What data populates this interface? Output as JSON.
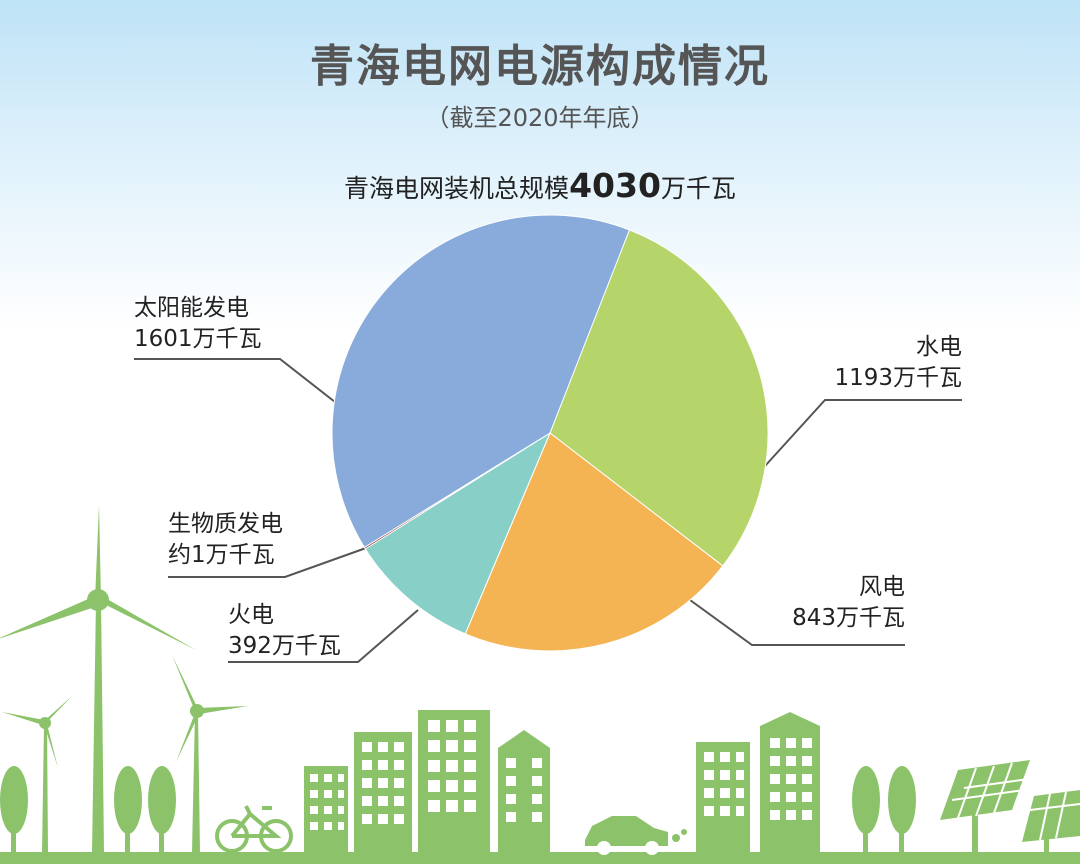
{
  "title": "青海电网电源构成情况",
  "subtitle": "（截至2020年年底）",
  "total": {
    "prefix": "青海电网装机总规模",
    "value": "4030",
    "suffix": "万千瓦"
  },
  "chart_data": {
    "type": "pie",
    "unit": "万千瓦",
    "total": 4030,
    "slices": [
      {
        "label": "水电",
        "value": 1193,
        "value_text": "1193万千瓦",
        "color": "#b5d56a"
      },
      {
        "label": "风电",
        "value": 843,
        "value_text": "843万千瓦",
        "color": "#f5b454"
      },
      {
        "label": "火电",
        "value": 392,
        "value_text": "392万千瓦",
        "color": "#88cfc8"
      },
      {
        "label": "生物质发电",
        "value": 1,
        "value_text": "约1万千瓦",
        "color": "#8b1a1a"
      },
      {
        "label": "太阳能发电",
        "value": 1601,
        "value_text": "1601万千瓦",
        "color": "#88abdb"
      }
    ]
  },
  "colors": {
    "scenery": "#8cc36a",
    "leader_line": "#555555"
  }
}
